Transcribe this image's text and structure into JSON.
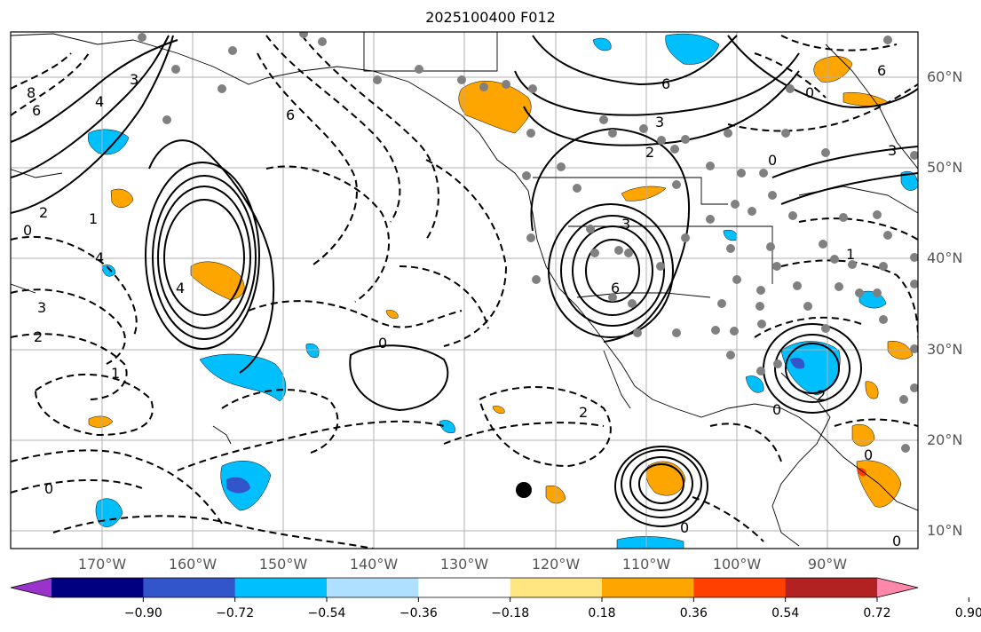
{
  "title": "2025100400 F012",
  "lon_labels": [
    "170°W",
    "160°W",
    "150°W",
    "140°W",
    "130°W",
    "120°W",
    "110°W",
    "100°W",
    "90°W"
  ],
  "lat_labels": [
    "60°N",
    "50°N",
    "40°N",
    "30°N",
    "20°N",
    "10°N"
  ],
  "colorbar": {
    "colors": [
      "#9933cc",
      "#000080",
      "#3355cc",
      "#00bfff",
      "#b0e0ff",
      "#ffffff",
      "#ffe680",
      "#ffa500",
      "#ff4000",
      "#b22222",
      "#ff88aa"
    ],
    "tick_labels": [
      "−0.90",
      "−0.72",
      "−0.54",
      "−0.36",
      "−0.18",
      "0.18",
      "0.36",
      "0.54",
      "0.72",
      "0.90"
    ]
  },
  "contour_labels": {
    "west_lows": [
      "8",
      "6",
      "4",
      "2",
      "0",
      "1",
      "3",
      "3",
      "2",
      "1",
      "0",
      "4",
      "4"
    ],
    "center": [
      "0",
      "6"
    ],
    "na_trough": [
      "6",
      "3",
      "2",
      "0",
      "3",
      "6"
    ],
    "east": [
      "6",
      "0",
      "3",
      "2",
      "0",
      "1"
    ],
    "south": [
      "2",
      "0",
      "0",
      "0"
    ]
  },
  "colors": {
    "fill_warm": "#ffa500",
    "fill_cold": "#00bfff",
    "fill_deep": "#3355cc",
    "station": "#808080"
  }
}
